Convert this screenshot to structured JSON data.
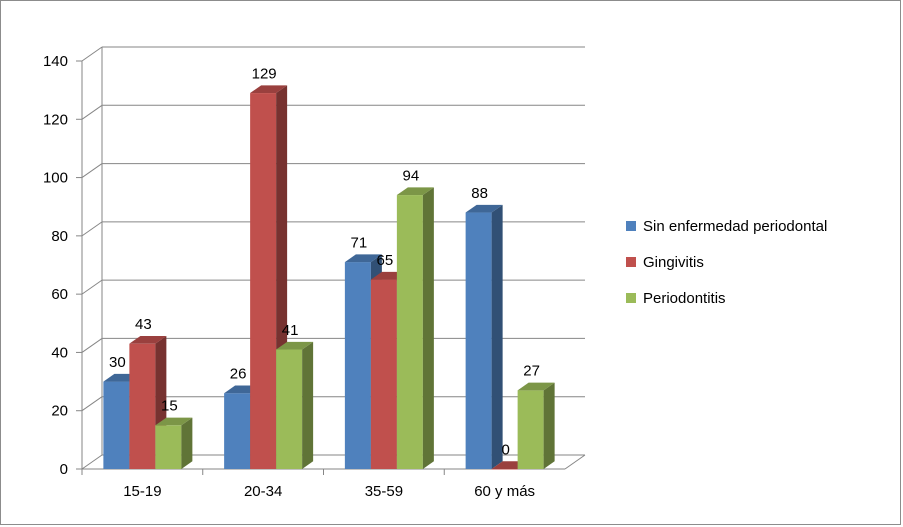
{
  "chart_data": {
    "type": "bar",
    "categories": [
      "15-19",
      "20-34",
      "35-59",
      "60 y más"
    ],
    "series": [
      {
        "name": "Sin enfermedad periodontal",
        "values": [
          30,
          26,
          71,
          88
        ],
        "color": "#4f81bd"
      },
      {
        "name": "Gingivitis",
        "values": [
          43,
          129,
          65,
          0
        ],
        "color": "#c0504d"
      },
      {
        "name": "Periodontitis",
        "values": [
          15,
          41,
          94,
          27
        ],
        "color": "#9bbb59"
      }
    ],
    "ylim": [
      0,
      140
    ],
    "yticks": [
      0,
      20,
      40,
      60,
      80,
      100,
      120,
      140
    ],
    "grid": true,
    "legend_position": "right",
    "three_d": true
  }
}
